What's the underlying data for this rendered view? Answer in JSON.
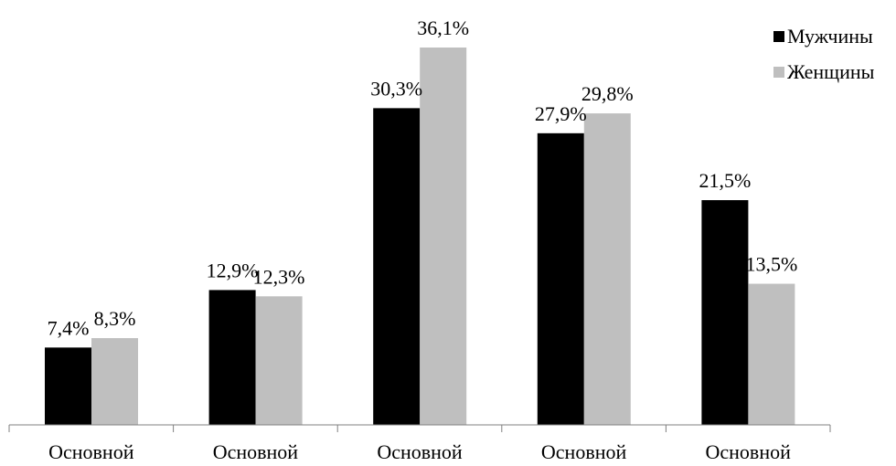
{
  "chart_data": {
    "type": "bar",
    "categories": [
      "Основной",
      "Основной",
      "Основной",
      "Основной",
      "Основной"
    ],
    "series": [
      {
        "name": "Мужчины",
        "values": [
          7.4,
          12.9,
          30.3,
          27.9,
          21.5
        ],
        "labels": [
          "7,4%",
          "12,9%",
          "30,3%",
          "27,9%",
          "21,5%"
        ],
        "color": "#000000"
      },
      {
        "name": "Женщины",
        "values": [
          8.3,
          12.3,
          36.1,
          29.8,
          13.5
        ],
        "labels": [
          "8,3%",
          "12,3%",
          "36,1%",
          "29,8%",
          "13,5%"
        ],
        "color": "#bfbfbf"
      }
    ],
    "title": "",
    "xlabel": "",
    "ylabel": "",
    "ylim": [
      0,
      40
    ],
    "grid": false,
    "legend_position": "top-right"
  }
}
